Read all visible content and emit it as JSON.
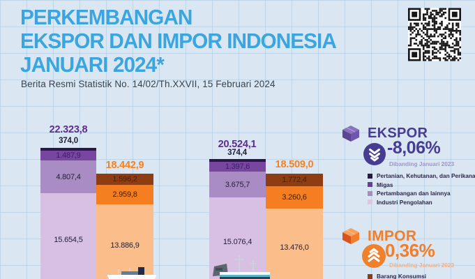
{
  "header": {
    "title_line1": "PERKEMBANGAN",
    "title_line2": "EKSPOR DAN IMPOR INDONESIA",
    "title_line3": "JANUARI 2024*",
    "subtitle": "Berita Resmi Statistik No. 14/02/Th.XXVII, 15 Februari 2024"
  },
  "chart_data": {
    "type": "bar",
    "stacked": true,
    "grid": true,
    "ekspor_series_labels": [
      "Pertanian, Kehutanan, dan Perikanan",
      "Migas",
      "Pertambangan dan lainnya",
      "Industri Pengolahan"
    ],
    "colors": {
      "ekspor_segments": [
        "#241A42",
        "#7747A0",
        "#A88CC3",
        "#D7C0E2"
      ],
      "impor_segments": [
        "#8E3D12",
        "#F57E21",
        "#FBBE8A"
      ],
      "ekspor_accent": "#463D92",
      "impor_accent": "#F07E2B",
      "title_blue": "#3AA5DE"
    },
    "groups": [
      {
        "ekspor": {
          "total_display": "22.323,8",
          "total": 22323.8,
          "segments": [
            {
              "name": "Pertanian, Kehutanan, dan Perikanan",
              "display": "374,0",
              "value": 374.0
            },
            {
              "name": "Migas",
              "display": "1.487,9",
              "value": 1487.9
            },
            {
              "name": "Pertambangan dan lainnya",
              "display": "4.807,4",
              "value": 4807.4
            },
            {
              "name": "Industri Pengolahan",
              "display": "15.654,5",
              "value": 15654.5
            }
          ]
        },
        "impor": {
          "total_display": "18.442,9",
          "total": 18442.9,
          "segments": [
            {
              "display": "1.596,2",
              "value": 1596.2
            },
            {
              "display": "2.959,8",
              "value": 2959.8
            },
            {
              "display": "13.886,9",
              "value": 13886.9
            }
          ]
        }
      },
      {
        "ekspor": {
          "total_display": "20.524,1",
          "total": 20524.1,
          "segments": [
            {
              "name": "Pertanian, Kehutanan, dan Perikanan",
              "display": "374,4",
              "value": 374.4
            },
            {
              "name": "Migas",
              "display": "1.397,6",
              "value": 1397.6
            },
            {
              "name": "Pertambangan dan lainnya",
              "display": "3.675,7",
              "value": 3675.7
            },
            {
              "name": "Industri Pengolahan",
              "display": "15.076,4",
              "value": 15076.4
            }
          ]
        },
        "impor": {
          "total_display": "18.509,0",
          "total": 18509.0,
          "segments": [
            {
              "display": "1.772,4",
              "value": 1772.4
            },
            {
              "display": "3.260,6",
              "value": 3260.6
            },
            {
              "display": "13.476,0",
              "value": 13476.0
            }
          ]
        }
      }
    ]
  },
  "panel": {
    "ekspor": {
      "title": "EKSPOR",
      "change": "-8,06%",
      "compare": "Dibanding Januari 2023"
    },
    "ekspor_legend": [
      {
        "label": "Pertanian, Kehutanan, dan Perikanan"
      },
      {
        "label": "Migas"
      },
      {
        "label": "Pertambangan dan lainnya"
      },
      {
        "label": "Industri Pengolahan"
      }
    ],
    "impor": {
      "title": "IMPOR",
      "change": "0,36%",
      "compare": "Dibanding Januari 2023"
    },
    "impor_legend": [
      {
        "label": "Barang Konsumsi"
      }
    ]
  }
}
